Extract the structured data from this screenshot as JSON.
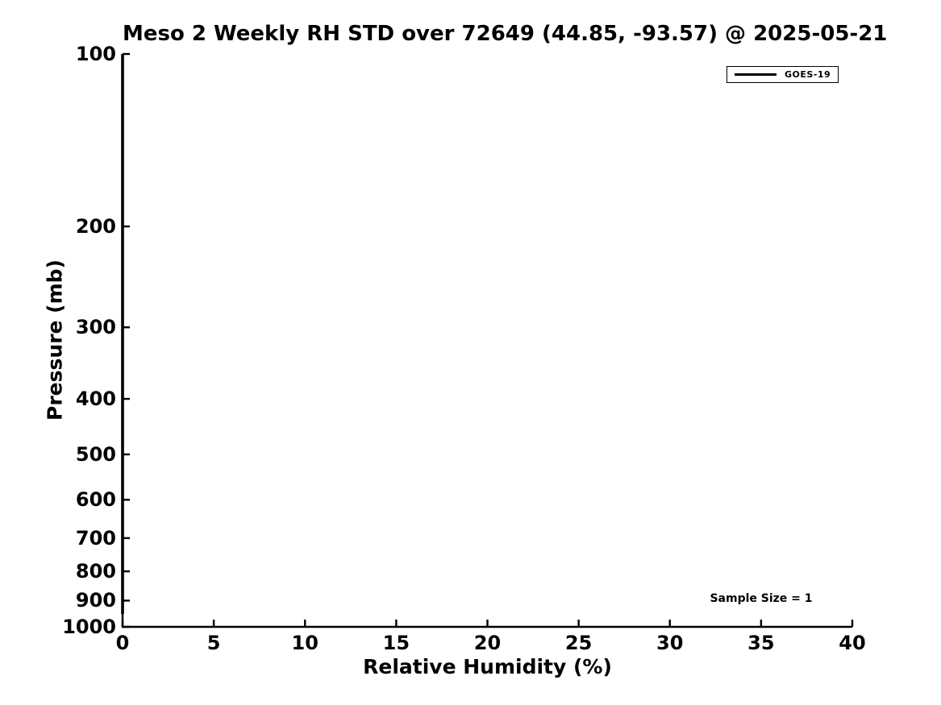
{
  "figure": {
    "background": "#ffffff",
    "foreground": "#000000"
  },
  "chart_data": {
    "type": "line",
    "title": "Meso 2 Weekly RH STD over 72649 (44.85, -93.57) @ 2025-05-21",
    "xlabel": "Relative Humidity (%)",
    "ylabel": "Pressure (mb)",
    "xlim": [
      0,
      40
    ],
    "x_ticks": [
      0,
      5,
      10,
      15,
      20,
      25,
      30,
      35,
      40
    ],
    "y_scale": "log",
    "y_axis_inverted": true,
    "ylim": [
      100,
      1000
    ],
    "y_ticks": [
      100,
      200,
      300,
      400,
      500,
      600,
      700,
      800,
      900,
      1000
    ],
    "grid": false,
    "tick_direction": "in",
    "spines": [
      "left",
      "bottom"
    ],
    "legend": {
      "position": "upper-right",
      "entries": [
        {
          "label": "GOES-19",
          "color": "#000000"
        }
      ]
    },
    "annotations": [
      {
        "text": "Sample Size = 1"
      }
    ],
    "series": [
      {
        "name": "GOES-19",
        "color": "#000000",
        "x": [
          0,
          0
        ],
        "pressure": [
          100,
          950
        ]
      }
    ]
  }
}
